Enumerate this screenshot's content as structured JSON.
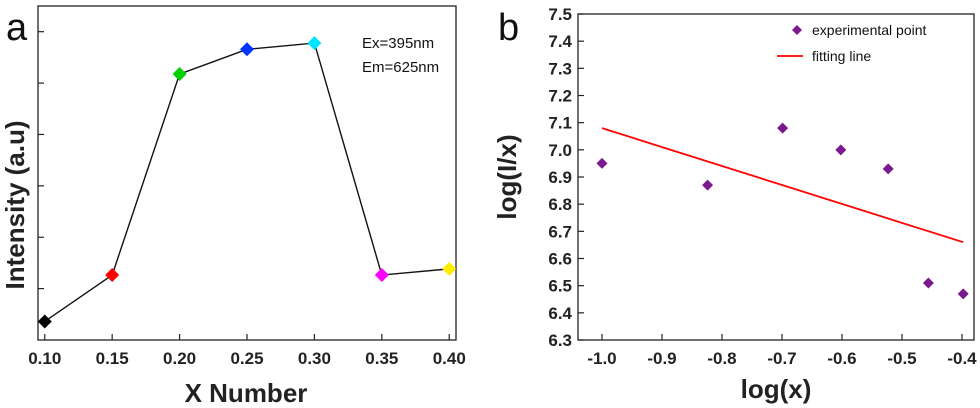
{
  "chart_data": [
    {
      "panel": "a",
      "type": "line",
      "xlabel": "X Number",
      "ylabel": "Intensity (a.u)",
      "x": [
        0.1,
        0.15,
        0.2,
        0.25,
        0.3,
        0.35,
        0.4
      ],
      "x_ticks": [
        "0.10",
        "0.15",
        "0.20",
        "0.25",
        "0.30",
        "0.35",
        "0.40"
      ],
      "xlim": [
        0.095,
        0.405
      ],
      "values": [
        0.06,
        0.21,
        0.86,
        0.94,
        0.96,
        0.21,
        0.23
      ],
      "ylim": [
        0,
        1.08
      ],
      "y_ticks_labeled": false,
      "point_colors": [
        "#000000",
        "#ff0000",
        "#00d000",
        "#0033ff",
        "#00e5ff",
        "#ff00ff",
        "#ffee00"
      ],
      "annotations": [
        "Ex=395nm",
        "Em=625nm"
      ],
      "grid": false
    },
    {
      "panel": "b",
      "type": "scatter",
      "xlabel": "log(x)",
      "ylabel": "log(I/x)",
      "xlim": [
        -1.04,
        -0.38
      ],
      "ylim": [
        6.3,
        7.5
      ],
      "x_ticks": [
        "-1.0",
        "-0.9",
        "-0.8",
        "-0.7",
        "-0.6",
        "-0.5",
        "-0.4"
      ],
      "y_ticks": [
        "6.3",
        "6.4",
        "6.5",
        "6.6",
        "6.7",
        "6.8",
        "6.9",
        "7.0",
        "7.1",
        "7.2",
        "7.3",
        "7.4",
        "7.5"
      ],
      "series": [
        {
          "name": "experimental point",
          "marker": "diamond",
          "color": "#7b1a8e",
          "x": [
            -1.0,
            -0.824,
            -0.699,
            -0.602,
            -0.523,
            -0.456,
            -0.398
          ],
          "y": [
            6.95,
            6.87,
            7.08,
            7.0,
            6.93,
            6.51,
            6.47
          ]
        },
        {
          "name": "fitting line",
          "type": "line",
          "color": "#ff0000",
          "x": [
            -1.0,
            -0.398
          ],
          "y": [
            7.08,
            6.66
          ]
        }
      ],
      "legend_position": "top-right",
      "grid": false
    }
  ]
}
